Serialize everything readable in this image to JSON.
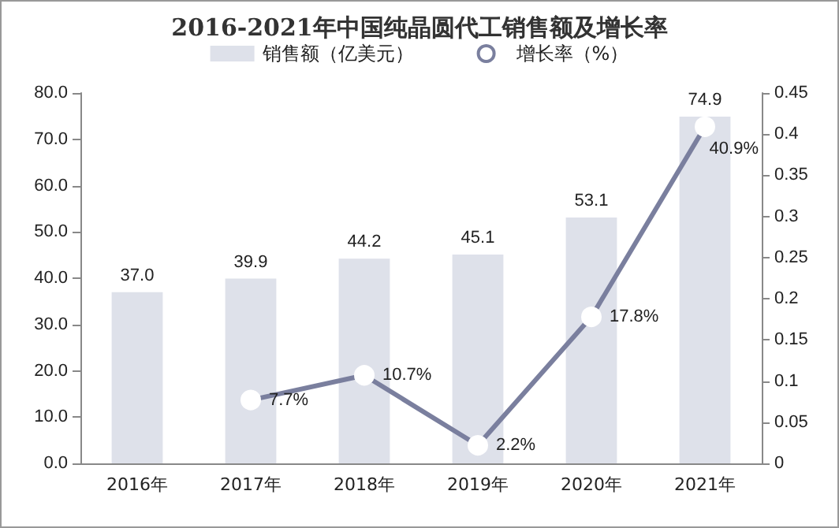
{
  "chart_data": {
    "type": "bar",
    "title": "2016-2021年中国纯晶圆代工销售额及增长率",
    "categories": [
      "2016年",
      "2017年",
      "2018年",
      "2019年",
      "2020年",
      "2021年"
    ],
    "series": [
      {
        "name": "销售额（亿美元）",
        "color": "#dee1ea",
        "values": [
          37.0,
          39.9,
          44.2,
          45.1,
          53.1,
          74.9
        ],
        "value_labels": [
          "37.0",
          "39.9",
          "44.2",
          "45.1",
          "53.1",
          "74.9"
        ]
      },
      {
        "name": "增长率（%）",
        "type": "line",
        "axis": "y2",
        "color": "#7a7f9e",
        "marker": "circle",
        "values": [
          null,
          0.077,
          0.107,
          0.022,
          0.178,
          0.409
        ],
        "value_labels": [
          null,
          "7.7%",
          "10.7%",
          "2.2%",
          "17.8%",
          "40.9%"
        ]
      }
    ],
    "ylim": [
      0,
      80
    ],
    "yticks": [
      {
        "value": 0,
        "label": "0.0"
      },
      {
        "value": 10,
        "label": "10.0"
      },
      {
        "value": 20,
        "label": "20.0"
      },
      {
        "value": 30,
        "label": "30.0"
      },
      {
        "value": 40,
        "label": "40.0"
      },
      {
        "value": 50,
        "label": "50.0"
      },
      {
        "value": 60,
        "label": "60.0"
      },
      {
        "value": 70,
        "label": "70.0"
      },
      {
        "value": 80,
        "label": "80.0"
      }
    ],
    "y2lim": [
      0,
      0.45
    ],
    "y2ticks": [
      0,
      0.05,
      0.1,
      0.15,
      0.2,
      0.25,
      0.3,
      0.35,
      0.4,
      0.45
    ],
    "grid": false,
    "legend": "top"
  }
}
